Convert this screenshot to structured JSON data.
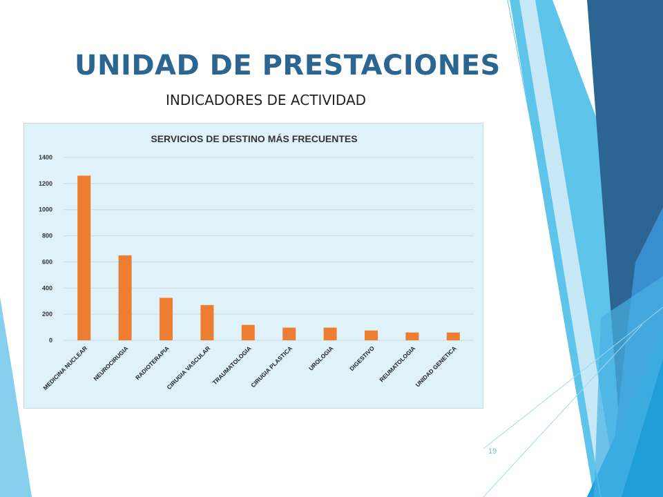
{
  "slide": {
    "title": "UNIDAD DE PRESTACIONES",
    "subtitle": "INDICADORES DE ACTIVIDAD",
    "page_number": "19"
  },
  "colors": {
    "title": "#2b6592",
    "bar": "#ed7d31",
    "chart_background": "#dff2fa",
    "accent_dark": "#2b6592",
    "accent_light": "#5ec4ea"
  },
  "chart_data": {
    "type": "bar",
    "title": "SERVICIOS DE DESTINO MÁS FRECUENTES",
    "categories": [
      "MEDICINA NUCLEAR",
      "NEUROCIRUGIA",
      "RADIOTERAPIA",
      "CIRUGIA VASCULAR",
      "TRAUMATOLOGIA",
      "CIRUGIA PLASTICA",
      "UROLOGIA",
      "DIGESTIVO",
      "REUMATOLOGIA",
      "UNIDAD GENETICA"
    ],
    "values": [
      1260,
      650,
      325,
      270,
      118,
      97,
      97,
      75,
      60,
      60
    ],
    "ylim": [
      0,
      1400
    ],
    "yticks": [
      "0",
      "200",
      "400",
      "600",
      "800",
      "1000",
      "1200",
      "1400"
    ],
    "grid": true,
    "xlabel": "",
    "ylabel": ""
  }
}
